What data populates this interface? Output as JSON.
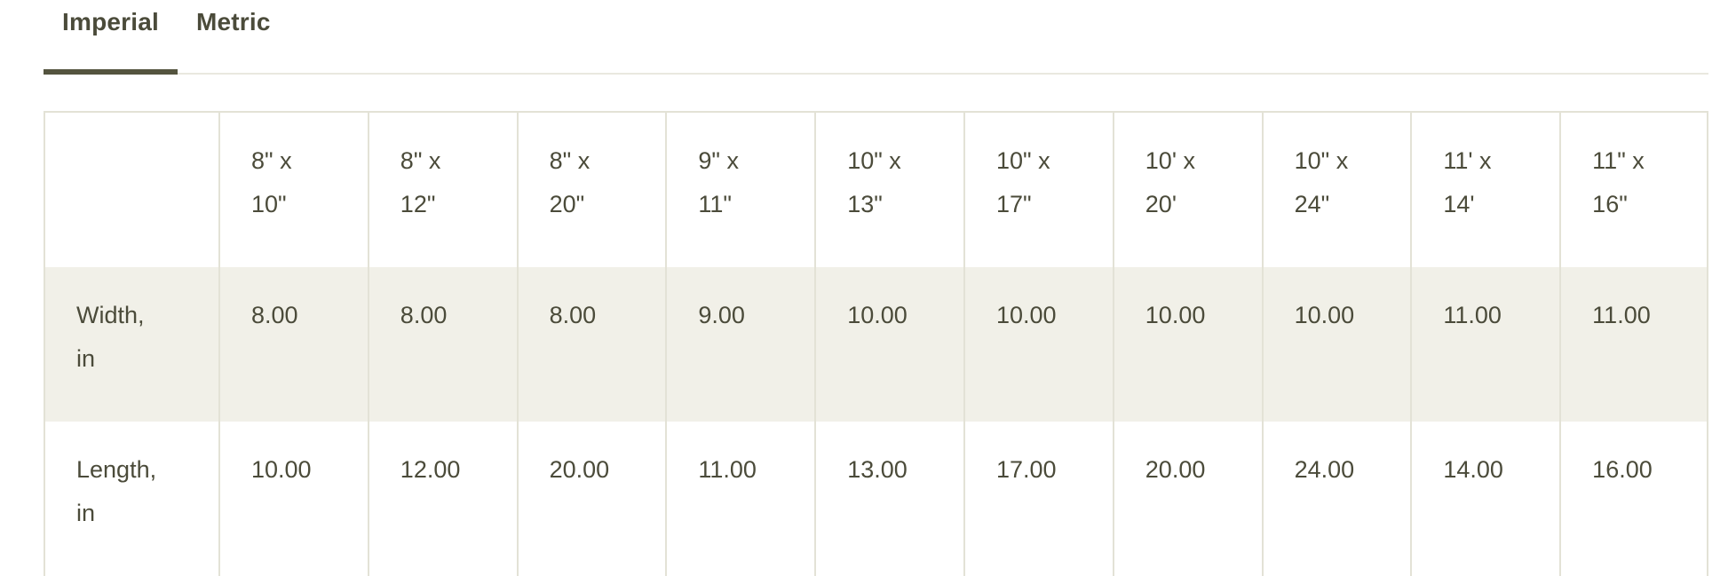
{
  "tabs": [
    {
      "label": "Imperial",
      "active": true
    },
    {
      "label": "Metric",
      "active": false
    }
  ],
  "table": {
    "column_headers": [
      "8\" x 10\"",
      "8\" x 12\"",
      "8\" x 20\"",
      "9\" x 11\"",
      "10\" x 13\"",
      "10\" x 17\"",
      "10' x 20'",
      "10\" x 24\"",
      "11' x 14'",
      "11\" x 16\""
    ],
    "rows": [
      {
        "label": "Width, in",
        "values": [
          "8.00",
          "8.00",
          "8.00",
          "9.00",
          "10.00",
          "10.00",
          "10.00",
          "10.00",
          "11.00",
          "11.00"
        ]
      },
      {
        "label": "Length, in",
        "values": [
          "10.00",
          "12.00",
          "20.00",
          "11.00",
          "13.00",
          "17.00",
          "20.00",
          "24.00",
          "14.00",
          "16.00"
        ]
      }
    ]
  },
  "colors": {
    "text": "#4b4b3a",
    "active_tab_underline": "#54543f",
    "tabs_divider": "#e9e8df",
    "table_border": "#e3e2d6",
    "stripe_row_background": "#f1f0e8"
  }
}
